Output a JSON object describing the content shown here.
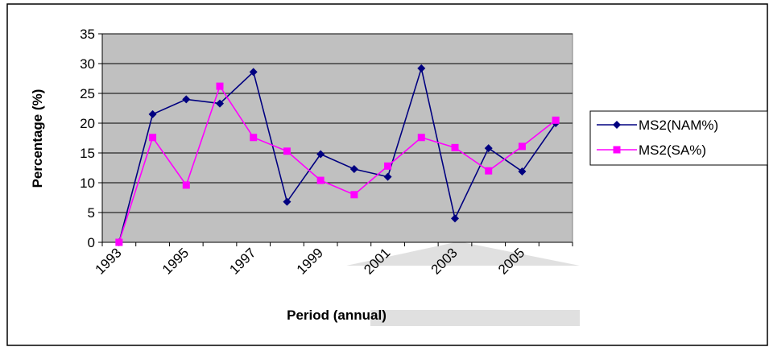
{
  "chart_data": {
    "type": "line",
    "x_label": "Period (annual)",
    "y_label": "Percentage  (%)",
    "categories": [
      "1993",
      null,
      "1995",
      null,
      "1997",
      null,
      "1999",
      null,
      "2001",
      null,
      "2003",
      null,
      "2005",
      null
    ],
    "series": [
      {
        "name": "MS2(NAM%)",
        "color": "#000080",
        "marker": "diamond",
        "values": [
          0,
          21.5,
          24,
          23.3,
          28.6,
          6.8,
          14.8,
          12.3,
          11,
          29.2,
          4,
          15.8,
          11.9,
          20
        ]
      },
      {
        "name": "MS2(SA%)",
        "color": "#ff00ff",
        "marker": "square",
        "values": [
          0,
          17.6,
          9.6,
          26.2,
          17.6,
          15.3,
          10.4,
          8,
          12.8,
          17.6,
          15.9,
          12,
          16.1,
          20.5
        ]
      }
    ],
    "ylim": [
      0,
      35
    ],
    "yticks": [
      0,
      5,
      10,
      15,
      20,
      25,
      30,
      35
    ],
    "grid": true,
    "plot_background": "#c0c0c0",
    "legend": "right"
  }
}
